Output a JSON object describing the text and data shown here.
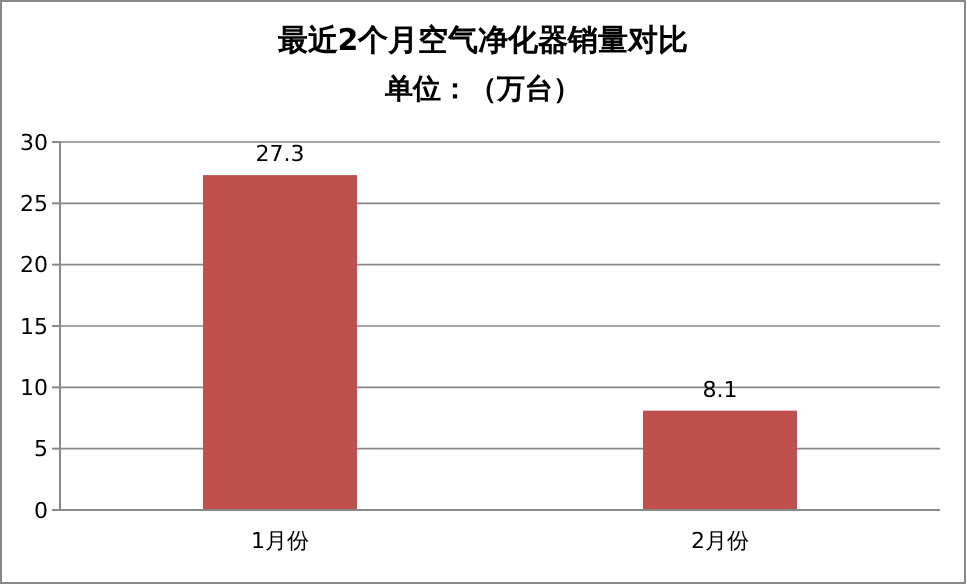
{
  "chart_data": {
    "type": "bar",
    "title": "最近2个月空气净化器销量对比",
    "subtitle": "单位：（万台）",
    "categories": [
      "1月份",
      "2月份"
    ],
    "values": [
      27.3,
      8.1
    ],
    "color": "#c0504d",
    "ylim": [
      0,
      30
    ],
    "yticks": [
      0,
      5,
      10,
      15,
      20,
      25,
      30
    ],
    "grid": "y",
    "data_labels": true
  }
}
